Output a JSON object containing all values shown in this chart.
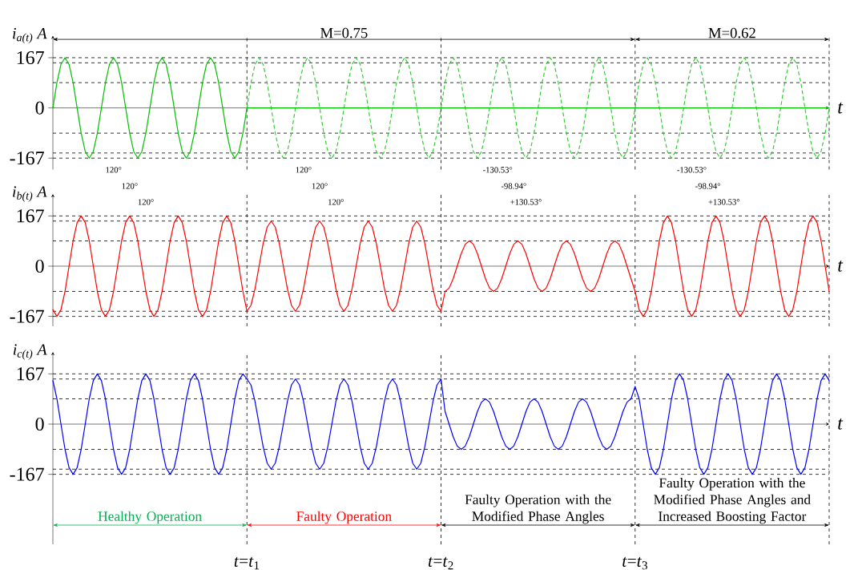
{
  "chart_data": [
    {
      "type": "line",
      "ylabel": "*i*$_{a(t)}$ A",
      "xlabel": "t",
      "ylim": [
        -205,
        240
      ],
      "yticks": [
        -167,
        0,
        167
      ],
      "tick_labels": "y",
      "grid": "x",
      "categories": [
        null,
        null,
        null,
        null,
        null,
        null,
        null,
        null,
        null,
        null,
        null,
        null,
        null,
        null,
        null,
        null,
        null,
        null,
        null,
        null,
        null,
        null,
        null,
        null,
        null,
        null,
        null,
        null,
        null,
        null,
        null,
        null,
        null,
        null,
        null,
        null,
        null,
        null,
        null,
        null,
        null,
        null,
        null,
        null,
        null,
        null,
        null,
        null,
        null,
        null,
        null,
        null,
        null,
        null,
        null,
        null,
        null,
        null,
        null,
        null,
        null,
        null,
        null,
        null,
        null,
        null,
        null,
        null,
        null,
        null,
        null,
        null,
        null,
        null,
        null,
        null,
        null,
        null,
        null,
        null,
        null,
        null,
        null,
        null,
        null,
        null,
        null,
        null,
        null,
        null,
        null,
        null,
        null,
        null,
        null,
        null,
        null,
        null,
        null,
        null,
        null,
        null,
        null,
        null,
        null,
        null,
        null,
        null,
        null,
        null,
        null,
        null,
        null,
        null,
        null,
        null,
        null,
        null,
        null,
        null,
        null,
        null,
        null,
        null,
        null,
        null,
        null,
        null,
        null,
        null,
        null,
        null,
        null,
        null,
        null,
        null,
        null,
        null,
        null,
        null,
        null,
        null,
        null,
        null,
        null,
        null,
        null,
        null,
        null,
        null,
        null,
        null,
        null,
        null,
        null,
        null,
        null,
        null,
        null,
        null,
        null,
        null,
        null,
        null,
        null,
        null,
        null,
        null,
        null,
        null,
        null,
        null,
        null,
        null,
        null,
        null,
        null,
        null,
        null,
        null,
        null,
        null,
        null,
        null,
        null,
        null,
        null,
        null,
        null,
        null,
        null,
        null,
        null
      ],
      "series": [
        {
          "color": "#00c000",
          "values": [
            0,
            84,
            145,
            167,
            145,
            84,
            0,
            -84,
            -145,
            -167,
            -145,
            -84,
            0,
            84,
            145,
            167,
            145,
            84,
            0,
            -84,
            -145,
            -167,
            -145,
            -84,
            0,
            84,
            145,
            167,
            145,
            84,
            0,
            -84,
            -145,
            -167,
            -145,
            -84,
            0,
            84,
            145,
            167,
            145,
            84,
            0,
            -84,
            -145,
            -167,
            -145,
            -84,
            0,
            null,
            null,
            null,
            null,
            null,
            null,
            null,
            null,
            null,
            null,
            null,
            null,
            null,
            null,
            null,
            null,
            null,
            null,
            null,
            null,
            null,
            null,
            null,
            null,
            null,
            null,
            null,
            null,
            null,
            null,
            null,
            null,
            null,
            null,
            null,
            null,
            null,
            null,
            null,
            null,
            null,
            null,
            null,
            null,
            null,
            null,
            null,
            null,
            null,
            null,
            null,
            null,
            null,
            null,
            null,
            null,
            null,
            null,
            null,
            null,
            null,
            null,
            null,
            null,
            null,
            null,
            null,
            null,
            null,
            null,
            null,
            null,
            null,
            null,
            null,
            null,
            null,
            null,
            null,
            null,
            null,
            null,
            null,
            null,
            null,
            null,
            null,
            null,
            null,
            null,
            null,
            null,
            null,
            null,
            null,
            null,
            null,
            null,
            null,
            null,
            null,
            null,
            null,
            null,
            null,
            null,
            null,
            null,
            null,
            null,
            null,
            null,
            null,
            null,
            null,
            null,
            null,
            null,
            null,
            null,
            null,
            null,
            null,
            null,
            null,
            null,
            null,
            null,
            null,
            null,
            null,
            null,
            null,
            null,
            null,
            null,
            null,
            null,
            null,
            null,
            null,
            null,
            null,
            null
          ]
        },
        {
          "color": "#33cc33",
          "line_style": "dashed",
          "values": [
            null,
            null,
            null,
            null,
            null,
            null,
            null,
            null,
            null,
            null,
            null,
            null,
            null,
            null,
            null,
            null,
            null,
            null,
            null,
            null,
            null,
            null,
            null,
            null,
            null,
            null,
            null,
            null,
            null,
            null,
            null,
            null,
            null,
            null,
            null,
            null,
            null,
            null,
            null,
            null,
            null,
            null,
            null,
            null,
            null,
            null,
            null,
            null,
            0,
            84,
            145,
            167,
            145,
            84,
            0,
            -84,
            -145,
            -167,
            -145,
            -84,
            0,
            84,
            145,
            167,
            145,
            84,
            0,
            -84,
            -145,
            -167,
            -145,
            -84,
            0,
            84,
            145,
            167,
            145,
            84,
            0,
            -84,
            -145,
            -167,
            -145,
            -84,
            0,
            84,
            145,
            167,
            145,
            84,
            0,
            -84,
            -145,
            -167,
            -145,
            -84,
            0,
            84,
            145,
            167,
            145,
            84,
            0,
            -84,
            -145,
            -167,
            -145,
            -84,
            0,
            84,
            145,
            167,
            145,
            84,
            0,
            -84,
            -145,
            -167,
            -145,
            -84,
            0,
            84,
            145,
            167,
            145,
            84,
            0,
            -84,
            -145,
            -167,
            -145,
            -84,
            0,
            84,
            145,
            167,
            145,
            84,
            0,
            -84,
            -145,
            -167,
            -145,
            -84,
            0,
            84,
            145,
            167,
            145,
            84,
            0,
            -84,
            -145,
            -167,
            -145,
            -84,
            0,
            84,
            145,
            167,
            145,
            84,
            0,
            -84,
            -145,
            -167,
            -145,
            -84,
            0,
            84,
            145,
            167,
            145,
            84,
            0,
            -84,
            -145,
            -167,
            -145,
            -84,
            0,
            84,
            145,
            167,
            145,
            84,
            0,
            -84,
            -145,
            -167,
            -145,
            -84,
            0
          ]
        },
        {
          "color": "#00c000",
          "values": [
            null,
            null,
            null,
            null,
            null,
            null,
            null,
            null,
            null,
            null,
            null,
            null,
            null,
            null,
            null,
            null,
            null,
            null,
            null,
            null,
            null,
            null,
            null,
            null,
            null,
            null,
            null,
            null,
            null,
            null,
            null,
            null,
            null,
            null,
            null,
            null,
            null,
            null,
            null,
            null,
            null,
            null,
            null,
            null,
            null,
            null,
            null,
            null,
            0,
            0,
            0,
            0,
            0,
            0,
            0,
            0,
            0,
            0,
            0,
            0,
            0,
            0,
            0,
            0,
            0,
            0,
            0,
            0,
            0,
            0,
            0,
            0,
            0,
            0,
            0,
            0,
            0,
            0,
            0,
            0,
            0,
            0,
            0,
            0,
            0,
            0,
            0,
            0,
            0,
            0,
            0,
            0,
            0,
            0,
            0,
            0,
            0,
            0,
            0,
            0,
            0,
            0,
            0,
            0,
            0,
            0,
            0,
            0,
            0,
            0,
            0,
            0,
            0,
            0,
            0,
            0,
            0,
            0,
            0,
            0,
            0,
            0,
            0,
            0,
            0,
            0,
            0,
            0,
            0,
            0,
            0,
            0,
            0,
            0,
            0,
            0,
            0,
            0,
            0,
            0,
            0,
            0,
            0,
            0,
            0,
            0,
            0,
            0,
            0,
            0,
            0,
            0,
            0,
            0,
            0,
            0,
            0,
            0,
            0,
            0,
            0,
            0,
            0,
            0,
            0,
            0,
            0,
            0,
            0,
            0,
            0,
            0,
            0,
            0,
            0,
            0,
            0,
            0,
            0,
            0,
            0,
            0,
            0,
            0,
            0,
            0,
            0,
            0,
            0,
            0,
            0,
            0,
            0
          ]
        }
      ],
      "ref_lines": [
        {
          "axis": "y",
          "value": 167,
          "line_style": "dashed"
        },
        {
          "axis": "y",
          "value": 150,
          "line_style": "dashed"
        },
        {
          "axis": "y",
          "value": 84,
          "line_style": "dashed"
        },
        {
          "axis": "y",
          "value": -84,
          "line_style": "dashed"
        },
        {
          "axis": "y",
          "value": -150,
          "line_style": "dashed"
        },
        {
          "axis": "y",
          "value": -167,
          "line_style": "dashed"
        }
      ],
      "annotations": [
        "M=0.75",
        "M=0.62",
        "120°",
        "120°",
        "120°",
        "120°",
        "120°",
        "120°",
        "-130.53°",
        "-98.94°",
        "+130.53°",
        "-130.53°",
        "-98.94°",
        "+130.53°"
      ]
    },
    {
      "type": "line",
      "ylabel": "*i*$_{b(t)}$ A",
      "xlabel": "t",
      "ylim": [
        -200,
        240
      ],
      "yticks": [
        -167,
        0,
        167
      ],
      "tick_labels": "y",
      "grid": "x",
      "categories": [
        null,
        null,
        null,
        null,
        null,
        null,
        null,
        null,
        null,
        null,
        null,
        null,
        null,
        null,
        null,
        null,
        null,
        null,
        null,
        null,
        null,
        null,
        null,
        null,
        null,
        null,
        null,
        null,
        null,
        null,
        null,
        null,
        null,
        null,
        null,
        null,
        null,
        null,
        null,
        null,
        null,
        null,
        null,
        null,
        null,
        null,
        null,
        null,
        null,
        null,
        null,
        null,
        null,
        null,
        null,
        null,
        null,
        null,
        null,
        null,
        null,
        null,
        null,
        null,
        null,
        null,
        null,
        null,
        null,
        null,
        null,
        null,
        null,
        null,
        null,
        null,
        null,
        null,
        null,
        null,
        null,
        null,
        null,
        null,
        null,
        null,
        null,
        null,
        null,
        null,
        null,
        null,
        null,
        null,
        null,
        null,
        null,
        null,
        null,
        null,
        null,
        null,
        null,
        null,
        null,
        null,
        null,
        null,
        null,
        null,
        null,
        null,
        null,
        null,
        null,
        null,
        null,
        null,
        null,
        null,
        null,
        null,
        null,
        null,
        null,
        null,
        null,
        null,
        null,
        null,
        null,
        null,
        null,
        null,
        null,
        null,
        null,
        null,
        null,
        null,
        null,
        null,
        null,
        null,
        null,
        null,
        null,
        null,
        null,
        null,
        null,
        null,
        null,
        null,
        null,
        null,
        null,
        null,
        null,
        null,
        null,
        null,
        null,
        null,
        null,
        null,
        null,
        null,
        null,
        null,
        null,
        null,
        null,
        null,
        null,
        null,
        null,
        null,
        null,
        null,
        null,
        null,
        null,
        null,
        null,
        null,
        null,
        null,
        null,
        null,
        null,
        null,
        null
      ],
      "series": [
        {
          "color": "#ff0000",
          "values": [
            -145,
            -167,
            -145,
            -84,
            0,
            84,
            145,
            167,
            145,
            84,
            0,
            -84,
            -145,
            -167,
            -145,
            -84,
            0,
            84,
            145,
            167,
            145,
            84,
            0,
            -84,
            -145,
            -167,
            -145,
            -84,
            0,
            84,
            145,
            167,
            145,
            84,
            0,
            -84,
            -145,
            -167,
            -145,
            -84,
            0,
            84,
            145,
            167,
            145,
            84,
            0,
            -84,
            -150,
            -130,
            -75,
            0,
            75,
            130,
            150,
            130,
            75,
            0,
            -75,
            -130,
            -150,
            -130,
            -75,
            0,
            75,
            130,
            150,
            130,
            75,
            0,
            -75,
            -130,
            -150,
            -130,
            -75,
            0,
            75,
            130,
            150,
            130,
            75,
            0,
            -75,
            -130,
            -150,
            -130,
            -75,
            0,
            75,
            130,
            150,
            130,
            75,
            0,
            -75,
            -130,
            -150,
            -84,
            -73,
            -42,
            0,
            42,
            73,
            84,
            73,
            42,
            0,
            -42,
            -73,
            -84,
            -73,
            -42,
            0,
            42,
            73,
            84,
            73,
            42,
            0,
            -42,
            -73,
            -84,
            -73,
            -42,
            0,
            42,
            73,
            84,
            73,
            42,
            0,
            -42,
            -73,
            -84,
            -73,
            -42,
            0,
            42,
            73,
            84,
            73,
            42,
            0,
            -42,
            -84,
            -145,
            -167,
            -145,
            -84,
            0,
            84,
            145,
            167,
            145,
            84,
            0,
            -84,
            -145,
            -167,
            -145,
            -84,
            0,
            84,
            145,
            167,
            145,
            84,
            0,
            -84,
            -145,
            -167,
            -145,
            -84,
            0,
            84,
            145,
            167,
            145,
            84,
            0,
            -84,
            -145,
            -167,
            -145,
            -84,
            0,
            84,
            145,
            167,
            145,
            84,
            0,
            -84
          ]
        }
      ],
      "ref_lines": [
        {
          "axis": "y",
          "value": 167,
          "line_style": "dashed"
        },
        {
          "axis": "y",
          "value": 150,
          "line_style": "dashed"
        },
        {
          "axis": "y",
          "value": 84,
          "line_style": "dashed"
        },
        {
          "axis": "y",
          "value": -84,
          "line_style": "dashed"
        },
        {
          "axis": "y",
          "value": -150,
          "line_style": "dashed"
        },
        {
          "axis": "y",
          "value": -167,
          "line_style": "dashed"
        }
      ]
    },
    {
      "type": "line",
      "ylabel": "*i*$_{c(t)}$ A",
      "xlabel": "t",
      "ylim": [
        -400,
        240
      ],
      "yticks": [
        -167,
        0,
        167
      ],
      "grid": "x",
      "categories": [
        null,
        null,
        null,
        null,
        null,
        null,
        null,
        null,
        null,
        null,
        null,
        null,
        null,
        null,
        null,
        null,
        null,
        null,
        null,
        null,
        null,
        null,
        null,
        null,
        null,
        null,
        null,
        null,
        null,
        null,
        null,
        null,
        null,
        null,
        null,
        null,
        null,
        null,
        null,
        null,
        null,
        null,
        null,
        null,
        null,
        null,
        null,
        null,
        "*t*=*t*$_{1}$",
        null,
        null,
        null,
        null,
        null,
        null,
        null,
        null,
        null,
        null,
        null,
        null,
        null,
        null,
        null,
        null,
        null,
        null,
        null,
        null,
        null,
        null,
        null,
        null,
        null,
        null,
        null,
        null,
        null,
        null,
        null,
        null,
        null,
        null,
        null,
        null,
        null,
        null,
        null,
        null,
        null,
        null,
        null,
        null,
        null,
        null,
        null,
        "*t*=*t*$_{2}$",
        null,
        null,
        null,
        null,
        null,
        null,
        null,
        null,
        null,
        null,
        null,
        null,
        null,
        null,
        null,
        null,
        null,
        null,
        null,
        null,
        null,
        null,
        null,
        null,
        null,
        null,
        null,
        null,
        null,
        null,
        null,
        null,
        null,
        null,
        null,
        null,
        null,
        null,
        null,
        null,
        null,
        null,
        null,
        null,
        null,
        null,
        null,
        "*t*=*t*$_{3}$",
        null,
        null,
        null,
        null,
        null,
        null,
        null,
        null,
        null,
        null,
        null,
        null,
        null,
        null,
        null,
        null,
        null,
        null,
        null,
        null,
        null,
        null,
        null,
        null,
        null,
        null,
        null,
        null,
        null,
        null,
        null,
        null,
        null,
        null,
        null,
        null,
        null,
        null,
        null,
        null,
        null,
        null,
        null,
        null,
        null,
        null,
        null,
        null
      ],
      "series": [
        {
          "color": "#0000ff",
          "values": [
            145,
            84,
            0,
            -84,
            -145,
            -167,
            -145,
            -84,
            0,
            84,
            145,
            167,
            145,
            84,
            0,
            -84,
            -145,
            -167,
            -145,
            -84,
            0,
            84,
            145,
            167,
            145,
            84,
            0,
            -84,
            -145,
            -167,
            -145,
            -84,
            0,
            84,
            145,
            167,
            145,
            84,
            0,
            -84,
            -145,
            -167,
            -145,
            -84,
            0,
            84,
            145,
            167,
            150,
            130,
            75,
            0,
            -75,
            -130,
            -150,
            -130,
            -75,
            0,
            75,
            130,
            150,
            130,
            75,
            0,
            -75,
            -130,
            -150,
            -130,
            -75,
            0,
            75,
            130,
            150,
            130,
            75,
            0,
            -75,
            -130,
            -150,
            -130,
            -75,
            0,
            75,
            130,
            150,
            130,
            75,
            0,
            -75,
            -130,
            -150,
            -130,
            -75,
            0,
            75,
            130,
            150,
            42,
            0,
            -42,
            -73,
            -84,
            -73,
            -42,
            0,
            42,
            73,
            84,
            73,
            42,
            0,
            -42,
            -73,
            -84,
            -73,
            -42,
            0,
            42,
            73,
            84,
            73,
            42,
            0,
            -42,
            -73,
            -84,
            -73,
            -42,
            0,
            42,
            73,
            84,
            73,
            42,
            0,
            -42,
            -73,
            -84,
            -73,
            -42,
            0,
            42,
            73,
            84,
            125,
            84,
            0,
            -84,
            -145,
            -167,
            -145,
            -84,
            0,
            84,
            145,
            167,
            145,
            84,
            0,
            -84,
            -145,
            -167,
            -145,
            -84,
            0,
            84,
            145,
            167,
            145,
            84,
            0,
            -84,
            -145,
            -167,
            -145,
            -84,
            0,
            84,
            145,
            167,
            145,
            84,
            0,
            -84,
            -145,
            -167,
            -145,
            -84,
            0,
            84,
            145,
            167,
            145
          ]
        }
      ],
      "ref_lines": [
        {
          "axis": "y",
          "value": 167,
          "line_style": "dashed"
        },
        {
          "axis": "y",
          "value": 150,
          "line_style": "dashed"
        },
        {
          "axis": "y",
          "value": 84,
          "line_style": "dashed"
        },
        {
          "axis": "y",
          "value": -84,
          "line_style": "dashed"
        },
        {
          "axis": "y",
          "value": -150,
          "line_style": "dashed"
        },
        {
          "axis": "y",
          "value": -167,
          "line_style": "dashed"
        }
      ],
      "annotations": [
        "Healthy Operation",
        "Faulty Operation",
        "Faulty Operation with the Modified Phase Angles",
        "Faulty Operation with the Modified Phase Angles and Increased Boosting Factor"
      ]
    }
  ]
}
